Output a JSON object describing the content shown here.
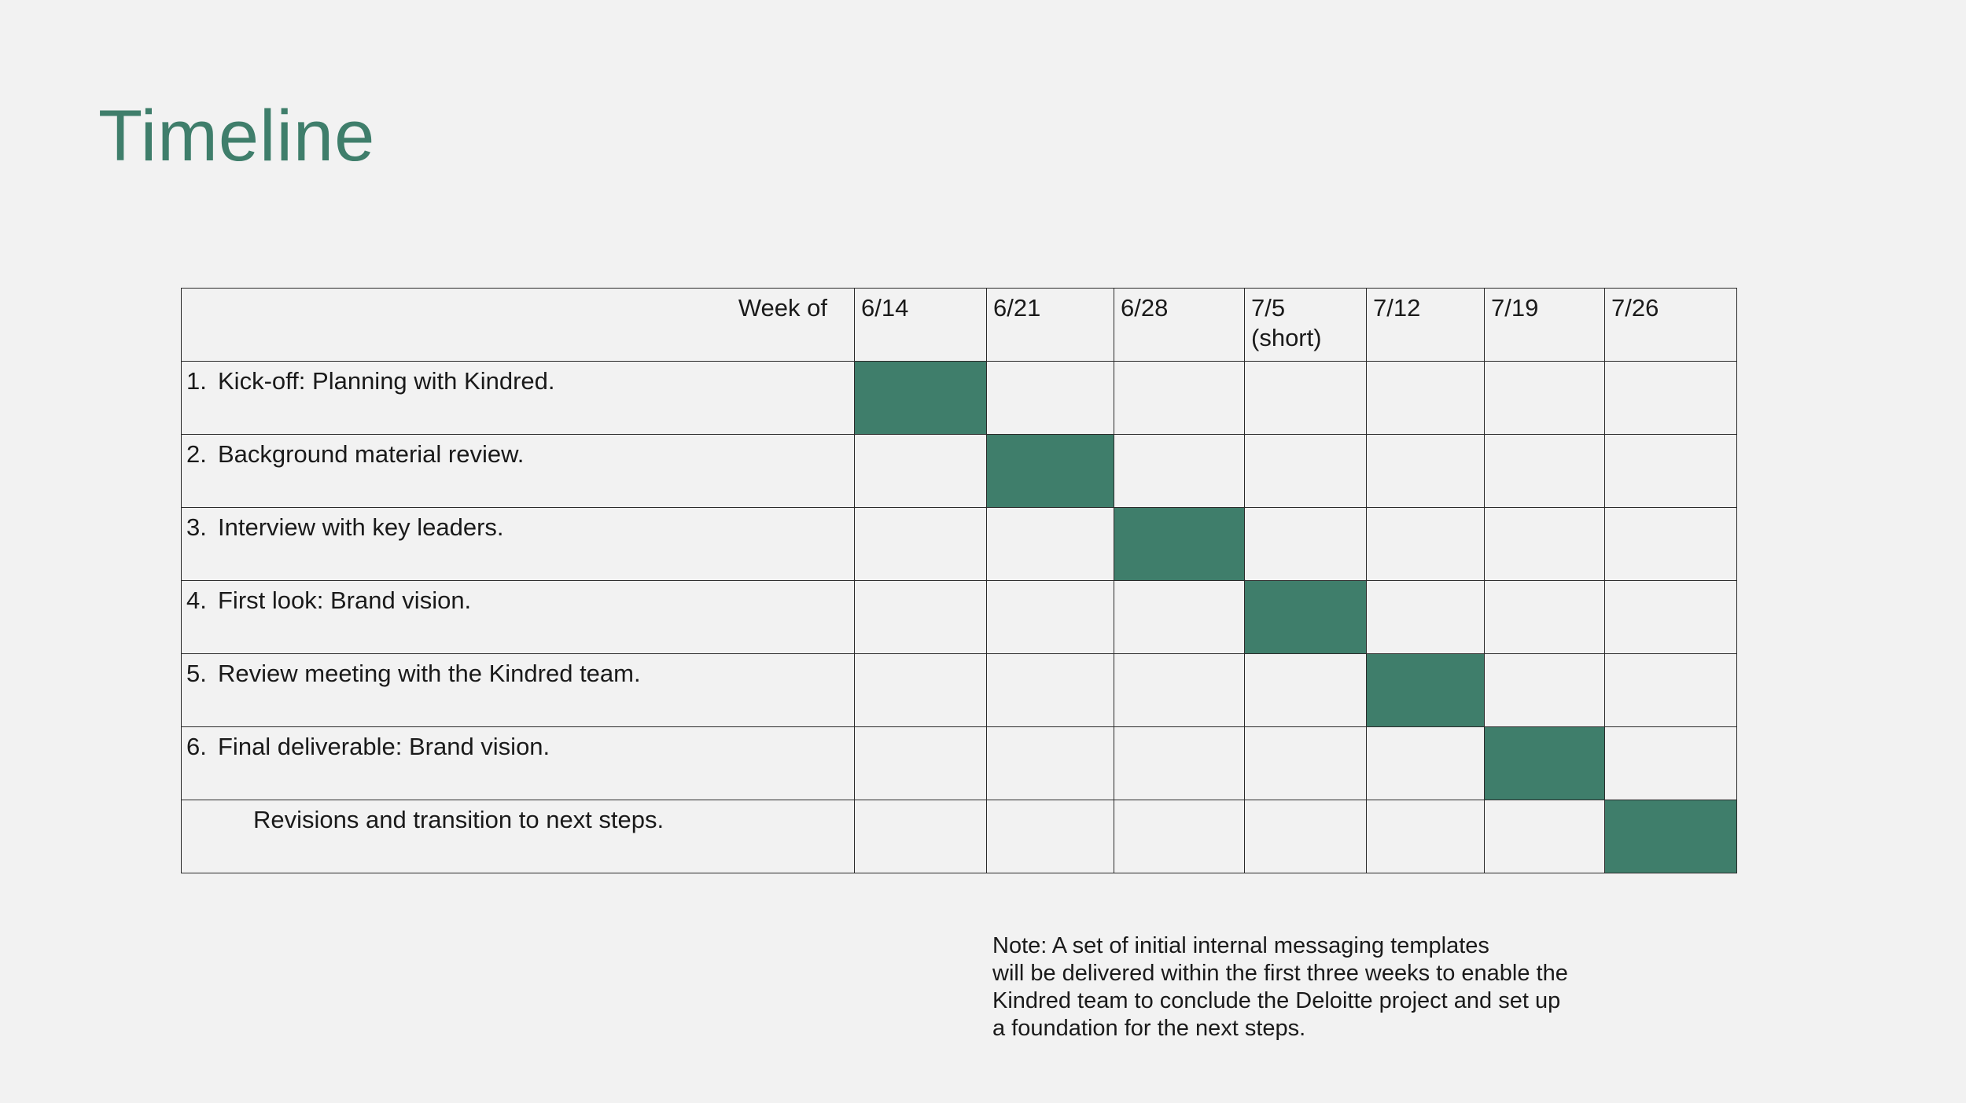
{
  "title": "Timeline",
  "colors": {
    "accent": "#3f7e6b",
    "background": "#f2f2f2",
    "grid": "#2b2b2b"
  },
  "table": {
    "header_label": "Week of",
    "weeks": [
      {
        "line1": "6/14",
        "line2": ""
      },
      {
        "line1": "6/21",
        "line2": ""
      },
      {
        "line1": "6/28",
        "line2": ""
      },
      {
        "line1": "7/5",
        "line2": "(short)"
      },
      {
        "line1": "7/12",
        "line2": ""
      },
      {
        "line1": "7/19",
        "line2": ""
      },
      {
        "line1": "7/26",
        "line2": ""
      }
    ],
    "tasks": [
      {
        "num": "1.",
        "label": "Kick-off: Planning with Kindred.",
        "active_week": 0
      },
      {
        "num": "2.",
        "label": "Background material review.",
        "active_week": 1
      },
      {
        "num": "3.",
        "label": "Interview with key leaders.",
        "active_week": 2
      },
      {
        "num": "4.",
        "label": "First look: Brand vision.",
        "active_week": 3
      },
      {
        "num": "5.",
        "label": "Review meeting with the Kindred team.",
        "active_week": 4
      },
      {
        "num": "6.",
        "label": "Final deliverable: Brand vision.",
        "active_week": 5
      },
      {
        "num": "",
        "label": "Revisions and transition to next steps.",
        "active_week": 6
      }
    ]
  },
  "note": {
    "lines": [
      "Note: A set of initial internal messaging templates",
      "will be delivered within the first three weeks to enable the",
      "Kindred team to conclude the Deloitte project and set up",
      "a foundation for the next steps."
    ]
  }
}
